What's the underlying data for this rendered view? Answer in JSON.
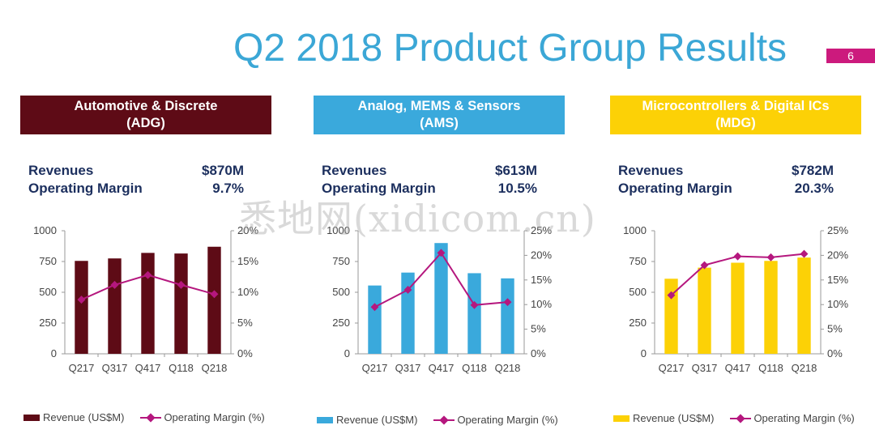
{
  "title": "Q2 2018 Product Group Results",
  "page_number": "6",
  "watermark": "悉地网(xidicom.cn)",
  "colors": {
    "title": "#3ba7d6",
    "margin_line": "#b5177e",
    "page_badge": "#cc1a7d"
  },
  "panels": [
    {
      "header_line1": "Automotive & Discrete",
      "header_line2": "(ADG)",
      "color": "#5e0b16",
      "revenues_label": "Revenues",
      "revenues_value": "$870M",
      "margin_label": "Operating Margin",
      "margin_value": "9.7%",
      "legend_revenue": "Revenue (US$M)",
      "legend_margin": "Operating Margin (%)"
    },
    {
      "header_line1": "Analog, MEMS & Sensors",
      "header_line2": "(AMS)",
      "color": "#3aa9dc",
      "revenues_label": "Revenues",
      "revenues_value": "$613M",
      "margin_label": "Operating Margin",
      "margin_value": "10.5%",
      "legend_revenue": "Revenue (US$M)",
      "legend_margin": "Operating Margin (%)"
    },
    {
      "header_line1": "Microcontrollers & Digital ICs",
      "header_line2": "(MDG)",
      "color": "#fcd106",
      "revenues_label": "Revenues",
      "revenues_value": "$782M",
      "margin_label": "Operating Margin",
      "margin_value": "20.3%",
      "legend_revenue": "Revenue (US$M)",
      "legend_margin": "Operating Margin (%)"
    }
  ],
  "chart_data": [
    {
      "type": "bar",
      "categories": [
        "Q217",
        "Q317",
        "Q417",
        "Q118",
        "Q218"
      ],
      "series": [
        {
          "name": "Revenue (US$M)",
          "type": "bar",
          "axis": "left",
          "values": [
            755,
            775,
            820,
            815,
            870
          ]
        },
        {
          "name": "Operating Margin (%)",
          "type": "line",
          "axis": "right",
          "values": [
            8.8,
            11.2,
            12.8,
            11.2,
            9.7
          ]
        }
      ],
      "ylim": [
        0,
        1000
      ],
      "yticks": [
        "0",
        "250",
        "500",
        "750",
        "1000"
      ],
      "y2lim": [
        0,
        20
      ],
      "y2ticks": [
        "0%",
        "5%",
        "10%",
        "15%",
        "20%"
      ],
      "legend": "bottom"
    },
    {
      "type": "bar",
      "categories": [
        "Q217",
        "Q317",
        "Q417",
        "Q118",
        "Q218"
      ],
      "series": [
        {
          "name": "Revenue (US$M)",
          "type": "bar",
          "axis": "left",
          "values": [
            555,
            660,
            900,
            655,
            613
          ]
        },
        {
          "name": "Operating Margin (%)",
          "type": "line",
          "axis": "right",
          "values": [
            9.5,
            13.0,
            20.5,
            9.9,
            10.5
          ]
        }
      ],
      "ylim": [
        0,
        1000
      ],
      "yticks": [
        "0",
        "250",
        "500",
        "750",
        "1000"
      ],
      "y2lim": [
        0,
        25
      ],
      "y2ticks": [
        "0%",
        "5%",
        "10%",
        "15%",
        "20%",
        "25%"
      ],
      "legend": "bottom"
    },
    {
      "type": "bar",
      "categories": [
        "Q217",
        "Q317",
        "Q417",
        "Q118",
        "Q218"
      ],
      "series": [
        {
          "name": "Revenue (US$M)",
          "type": "bar",
          "axis": "left",
          "values": [
            610,
            700,
            740,
            755,
            782
          ]
        },
        {
          "name": "Operating Margin (%)",
          "type": "line",
          "axis": "right",
          "values": [
            11.9,
            18.0,
            19.8,
            19.6,
            20.3
          ]
        }
      ],
      "ylim": [
        0,
        1000
      ],
      "yticks": [
        "0",
        "250",
        "500",
        "750",
        "1000"
      ],
      "y2lim": [
        0,
        25
      ],
      "y2ticks": [
        "0%",
        "5%",
        "10%",
        "15%",
        "20%",
        "25%"
      ],
      "legend": "bottom"
    }
  ]
}
